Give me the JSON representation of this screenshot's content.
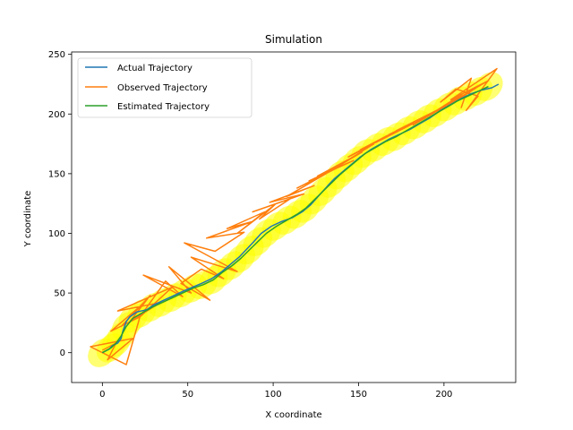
{
  "chart_data": {
    "type": "line",
    "title": "Simulation",
    "xlabel": "X coordinate",
    "ylabel": "Y coordinate",
    "xlim": [
      -18,
      242
    ],
    "ylim": [
      -25,
      252
    ],
    "xticks": [
      0,
      50,
      100,
      150,
      200
    ],
    "yticks": [
      0,
      50,
      100,
      150,
      200,
      250
    ],
    "grid": false,
    "legend_position": "upper-left",
    "uncertainty_color": "#ffff00",
    "series": [
      {
        "name": "Actual Trajectory",
        "color": "#1f77b4",
        "x": [
          0,
          4,
          6,
          9,
          11,
          12,
          14,
          16,
          20,
          26,
          30,
          36,
          42,
          48,
          53,
          58,
          64,
          70,
          75,
          80,
          84,
          88,
          93,
          99,
          105,
          111,
          117,
          122,
          127,
          132,
          136,
          141,
          146,
          151,
          157,
          163,
          168,
          174,
          180,
          186,
          192,
          198,
          204,
          210,
          216,
          222,
          228,
          232
        ],
        "y": [
          0,
          3,
          6,
          8,
          12,
          18,
          26,
          30,
          34,
          36,
          40,
          44,
          48,
          52,
          55,
          58,
          62,
          68,
          74,
          80,
          86,
          92,
          100,
          106,
          110,
          113,
          118,
          124,
          132,
          140,
          146,
          152,
          158,
          164,
          170,
          175,
          179,
          183,
          187,
          192,
          197,
          203,
          208,
          213,
          217,
          220,
          222,
          225
        ]
      },
      {
        "name": "Observed Trajectory",
        "color": "#ff7f0e",
        "x": [
          0,
          8,
          3,
          18,
          -7,
          14,
          22,
          5,
          23,
          11,
          28,
          16,
          34,
          9,
          41,
          22,
          37,
          47,
          24,
          52,
          39,
          63,
          46,
          58,
          71,
          52,
          79,
          48,
          66,
          83,
          61,
          88,
          73,
          95,
          79,
          101,
          92,
          110,
          88,
          118,
          98,
          124,
          108,
          131,
          114,
          139,
          121,
          147,
          126,
          152,
          133,
          159,
          144,
          167,
          151,
          175,
          160,
          182,
          168,
          190,
          172,
          197,
          182,
          205,
          187,
          212,
          195,
          219,
          201,
          226,
          204,
          231,
          213,
          220,
          207,
          198,
          216,
          210
        ],
        "y": [
          2,
          8,
          -6,
          12,
          5,
          -10,
          30,
          18,
          40,
          22,
          48,
          26,
          42,
          35,
          55,
          30,
          60,
          47,
          65,
          50,
          72,
          44,
          58,
          70,
          62,
          80,
          68,
          92,
          85,
          101,
          96,
          110,
          104,
          118,
          100,
          124,
          112,
          129,
          118,
          133,
          126,
          140,
          131,
          150,
          138,
          156,
          144,
          161,
          148,
          168,
          152,
          175,
          164,
          182,
          170,
          188,
          176,
          192,
          183,
          198,
          186,
          204,
          191,
          210,
          195,
          218,
          200,
          222,
          207,
          228,
          212,
          238,
          203,
          215,
          221,
          210,
          230,
          205
        ]
      },
      {
        "name": "Estimated Trajectory",
        "color": "#2ca02c",
        "x": [
          0,
          5,
          8,
          11,
          14,
          18,
          23,
          29,
          35,
          41,
          47,
          53,
          59,
          65,
          70,
          76,
          81,
          86,
          91,
          96,
          102,
          108,
          114,
          119,
          124,
          129,
          134,
          139,
          144,
          149,
          154,
          160,
          166,
          172,
          178,
          184,
          190,
          196,
          202,
          208,
          214,
          220,
          226
        ],
        "y": [
          0,
          4,
          8,
          14,
          22,
          29,
          33,
          38,
          42,
          46,
          50,
          54,
          57,
          61,
          67,
          73,
          79,
          86,
          93,
          100,
          106,
          111,
          116,
          121,
          128,
          135,
          142,
          149,
          155,
          161,
          167,
          172,
          177,
          181,
          186,
          191,
          196,
          201,
          206,
          211,
          215,
          219,
          223
        ]
      }
    ]
  }
}
